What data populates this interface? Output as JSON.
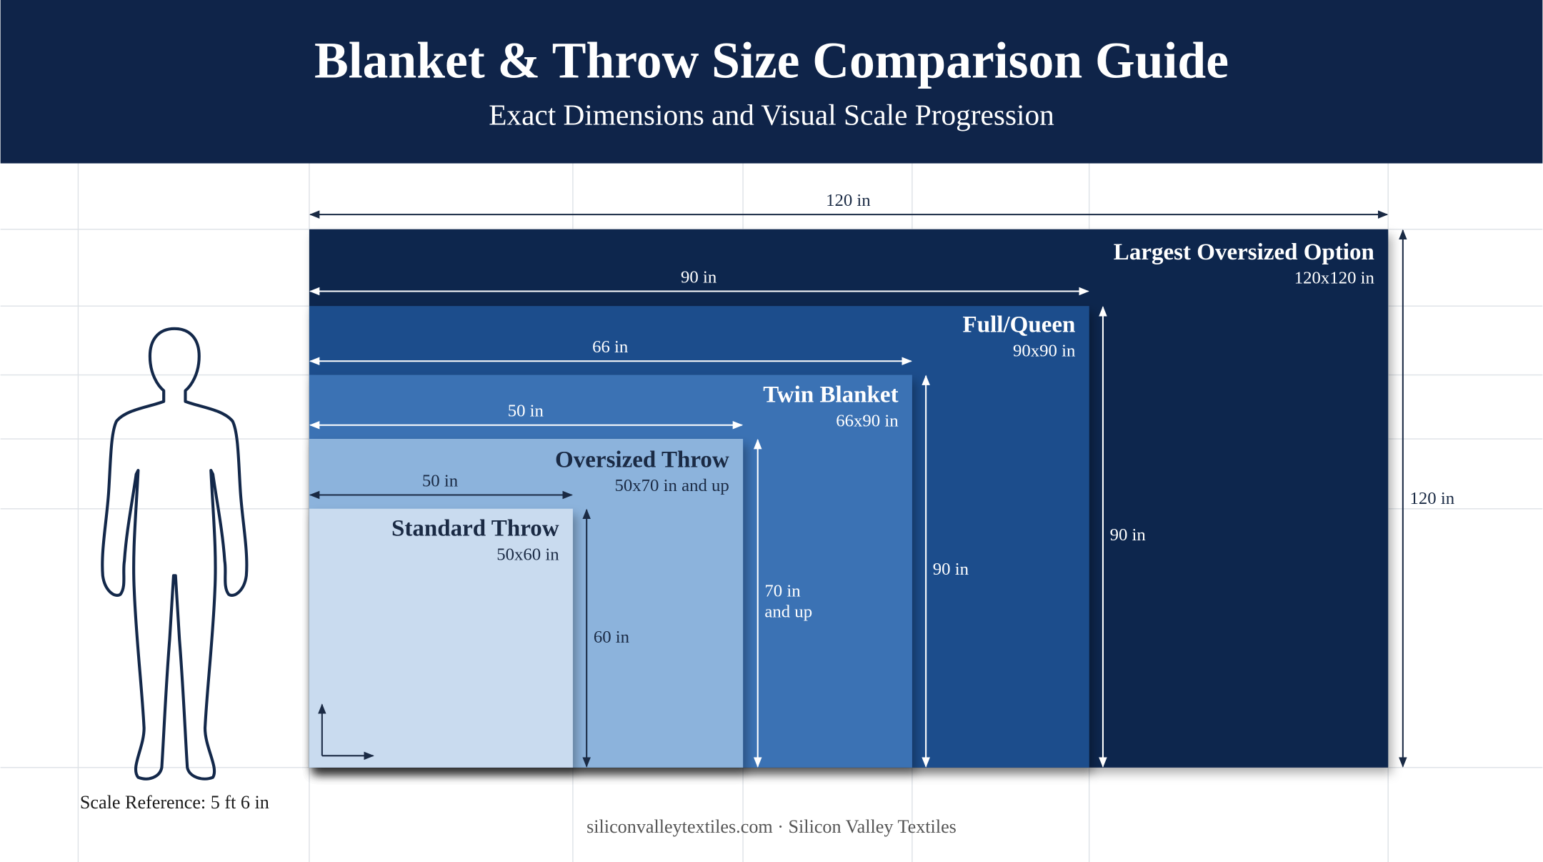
{
  "header": {
    "title": "Blanket & Throw Size Comparison Guide",
    "subtitle": "Exact Dimensions and Visual Scale Progression"
  },
  "sizes": [
    {
      "name": "Largest Oversized Option",
      "dims": "120x120 in",
      "width_label": "120 in",
      "height_label": [
        "120 in"
      ]
    },
    {
      "name": "Full/Queen",
      "dims": "90x90 in",
      "width_label": "90 in",
      "height_label": [
        "90 in"
      ]
    },
    {
      "name": "Twin Blanket",
      "dims": "66x90 in",
      "width_label": "66 in",
      "height_label": [
        "90 in"
      ]
    },
    {
      "name": "Oversized Throw",
      "dims": "50x70 in and up",
      "width_label": "50 in",
      "height_label": [
        "70 in",
        "and up"
      ]
    },
    {
      "name": "Standard Throw",
      "dims": "50x60 in",
      "width_label": "50 in",
      "height_label": [
        "60 in"
      ]
    }
  ],
  "scale_reference": "Scale Reference: 5 ft 6 in",
  "footer": "siliconvalleytextiles.com · Silicon Valley Textiles"
}
